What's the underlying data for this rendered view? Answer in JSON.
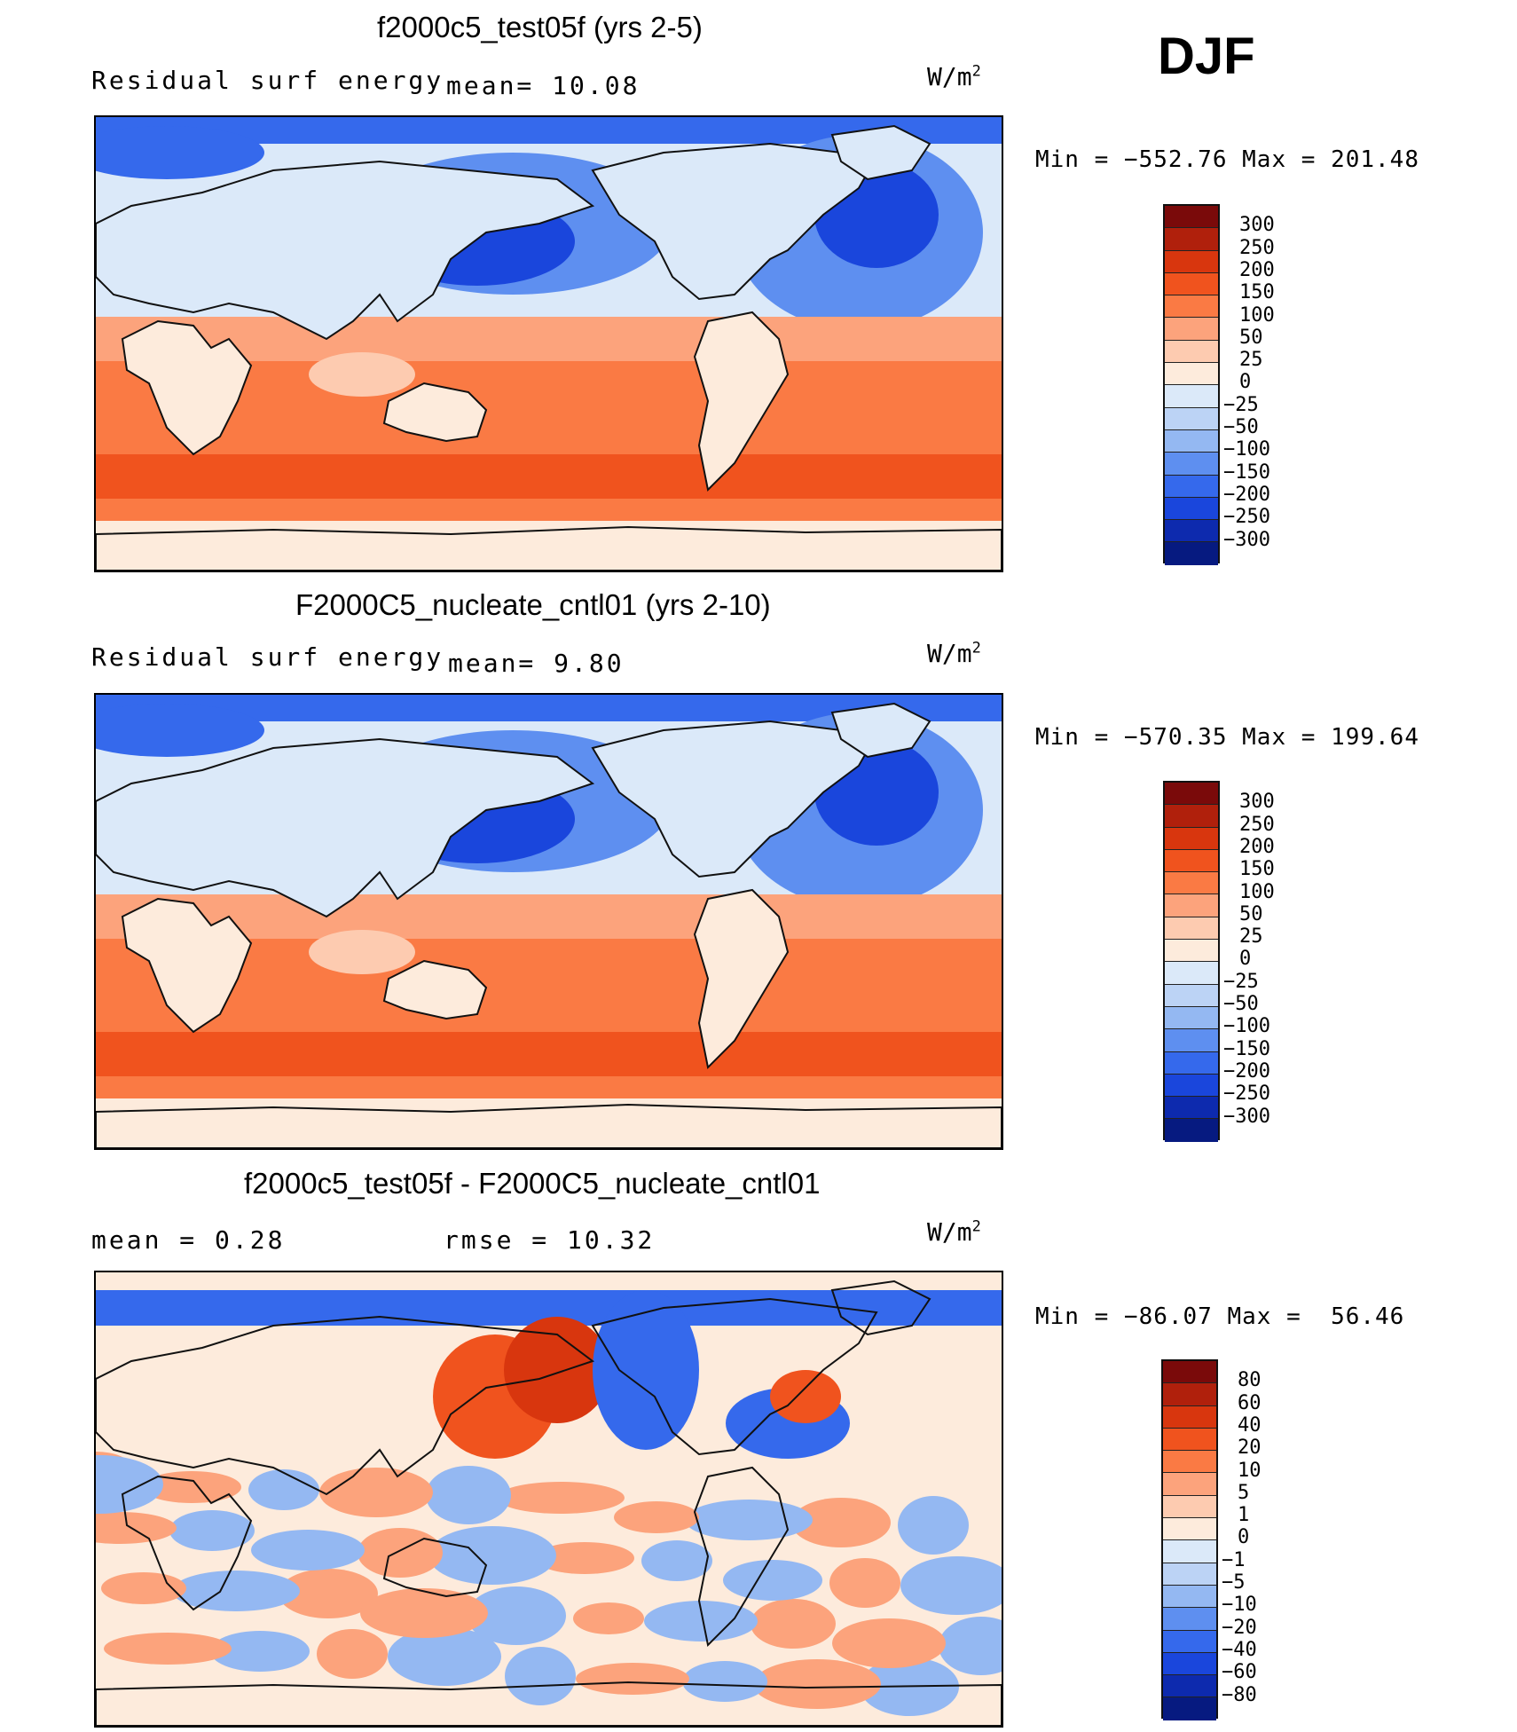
{
  "season": "DJF",
  "panels": [
    {
      "title": "f2000c5_test05f (yrs 2-5)",
      "left_text": "Residual surf energy",
      "mean_text": "mean=   10.08",
      "units": "W/m",
      "units_exp": "2",
      "minmax": "Min = −552.76 Max = 201.48",
      "colorbar": {
        "labels": [
          "300",
          "250",
          "200",
          "150",
          "100",
          "50",
          "25",
          "0",
          "−25",
          "−50",
          "−100",
          "−150",
          "−200",
          "−250",
          "−300"
        ],
        "colors": [
          "#7a0a0a",
          "#b0200c",
          "#d8360e",
          "#f0531e",
          "#fa7a44",
          "#fca37c",
          "#fdcbb0",
          "#fdebdc",
          "#dbe9f9",
          "#bcd3f5",
          "#94b8f2",
          "#5e8ff0",
          "#3569ec",
          "#1a46dc",
          "#0d2aae",
          "#061a80"
        ]
      },
      "field": "control"
    },
    {
      "title": "F2000C5_nucleate_cntl01 (yrs 2-10)",
      "left_text": "Residual surf energy",
      "mean_text": "mean=    9.80",
      "units": "W/m",
      "units_exp": "2",
      "minmax": "Min = −570.35 Max = 199.64",
      "colorbar": {
        "labels": [
          "300",
          "250",
          "200",
          "150",
          "100",
          "50",
          "25",
          "0",
          "−25",
          "−50",
          "−100",
          "−150",
          "−200",
          "−250",
          "−300"
        ],
        "colors": [
          "#7a0a0a",
          "#b0200c",
          "#d8360e",
          "#f0531e",
          "#fa7a44",
          "#fca37c",
          "#fdcbb0",
          "#fdebdc",
          "#dbe9f9",
          "#bcd3f5",
          "#94b8f2",
          "#5e8ff0",
          "#3569ec",
          "#1a46dc",
          "#0d2aae",
          "#061a80"
        ]
      },
      "field": "control"
    },
    {
      "title": "f2000c5_test05f - F2000C5_nucleate_cntl01",
      "left_text": "mean =    0.28",
      "mean_text": "rmse =    10.32",
      "units": "W/m",
      "units_exp": "2",
      "minmax": "Min = −86.07 Max =  56.46",
      "colorbar": {
        "labels": [
          "80",
          "60",
          "40",
          "20",
          "10",
          "5",
          "1",
          "0",
          "−1",
          "−5",
          "−10",
          "−20",
          "−40",
          "−60",
          "−80"
        ],
        "colors": [
          "#7a0a0a",
          "#b0200c",
          "#d8360e",
          "#f0531e",
          "#fa7a44",
          "#fca37c",
          "#fdcbb0",
          "#fdebdc",
          "#dbe9f9",
          "#bcd3f5",
          "#94b8f2",
          "#5e8ff0",
          "#3569ec",
          "#1a46dc",
          "#0d2aae",
          "#061a80"
        ]
      },
      "field": "difference"
    }
  ]
}
